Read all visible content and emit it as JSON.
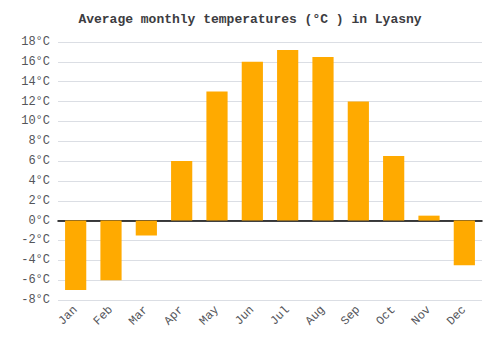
{
  "chart_data": {
    "type": "bar",
    "title": "Average monthly temperatures (°C ) in Lyasny",
    "categories": [
      "Jan",
      "Feb",
      "Mar",
      "Apr",
      "May",
      "Jun",
      "Jul",
      "Aug",
      "Sep",
      "Oct",
      "Nov",
      "Dec"
    ],
    "values": [
      -7.0,
      -6.0,
      -1.5,
      6.0,
      13.0,
      16.0,
      17.2,
      16.5,
      12.0,
      6.5,
      0.5,
      -4.5
    ],
    "color": "#FFAA00",
    "ylim": [
      -8,
      18
    ],
    "yticks": [
      {
        "value": -8,
        "label": "-8°C"
      },
      {
        "value": -6,
        "label": "-6°C"
      },
      {
        "value": -4,
        "label": "-4°C"
      },
      {
        "value": -2,
        "label": "-2°C"
      },
      {
        "value": 0,
        "label": "0°C"
      },
      {
        "value": 2,
        "label": "2°C"
      },
      {
        "value": 4,
        "label": "4°C"
      },
      {
        "value": 6,
        "label": "6°C"
      },
      {
        "value": 8,
        "label": "8°C"
      },
      {
        "value": 10,
        "label": "10°C"
      },
      {
        "value": 12,
        "label": "12°C"
      },
      {
        "value": 14,
        "label": "14°C"
      },
      {
        "value": 16,
        "label": "16°C"
      },
      {
        "value": 18,
        "label": "18°C"
      }
    ],
    "grid": true
  }
}
